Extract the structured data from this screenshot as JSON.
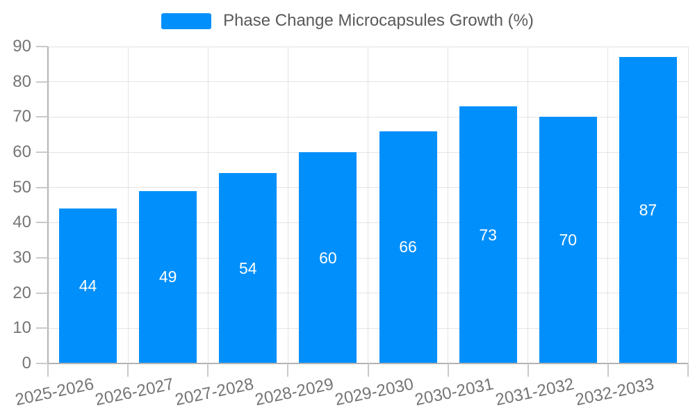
{
  "chart_data": {
    "type": "bar",
    "title": "Phase Change Microcapsules Growth (%)",
    "legend": {
      "position": "top",
      "label": "Phase Change Microcapsules Growth (%)"
    },
    "categories": [
      "2025-2026",
      "2026-2027",
      "2027-2028",
      "2028-2029",
      "2029-2030",
      "2030-2031",
      "2031-2032",
      "2032-2033"
    ],
    "series": [
      {
        "name": "Phase Change Microcapsules Growth (%)",
        "values": [
          44,
          49,
          54,
          60,
          66,
          73,
          70,
          87
        ]
      }
    ],
    "value_labels": [
      "44",
      "49",
      "54",
      "60",
      "66",
      "73",
      "70",
      "87"
    ],
    "value_label_position": "inside-center",
    "xlabel": "",
    "ylabel": "",
    "ylim": [
      0,
      90
    ],
    "yticks": [
      0,
      10,
      20,
      30,
      40,
      50,
      60,
      70,
      80,
      90
    ],
    "grid": true,
    "x_label_rotation_deg": -12,
    "colors": {
      "bar": "#008FFB",
      "value_label": "#FFFFFF",
      "axis_text": "#757575",
      "legend_text": "#595959",
      "gridline": "#E3E3E3",
      "axis_line": "#B3B3B3",
      "tick_mark": "#C9C9C9",
      "background": "#FFFFFF"
    }
  }
}
